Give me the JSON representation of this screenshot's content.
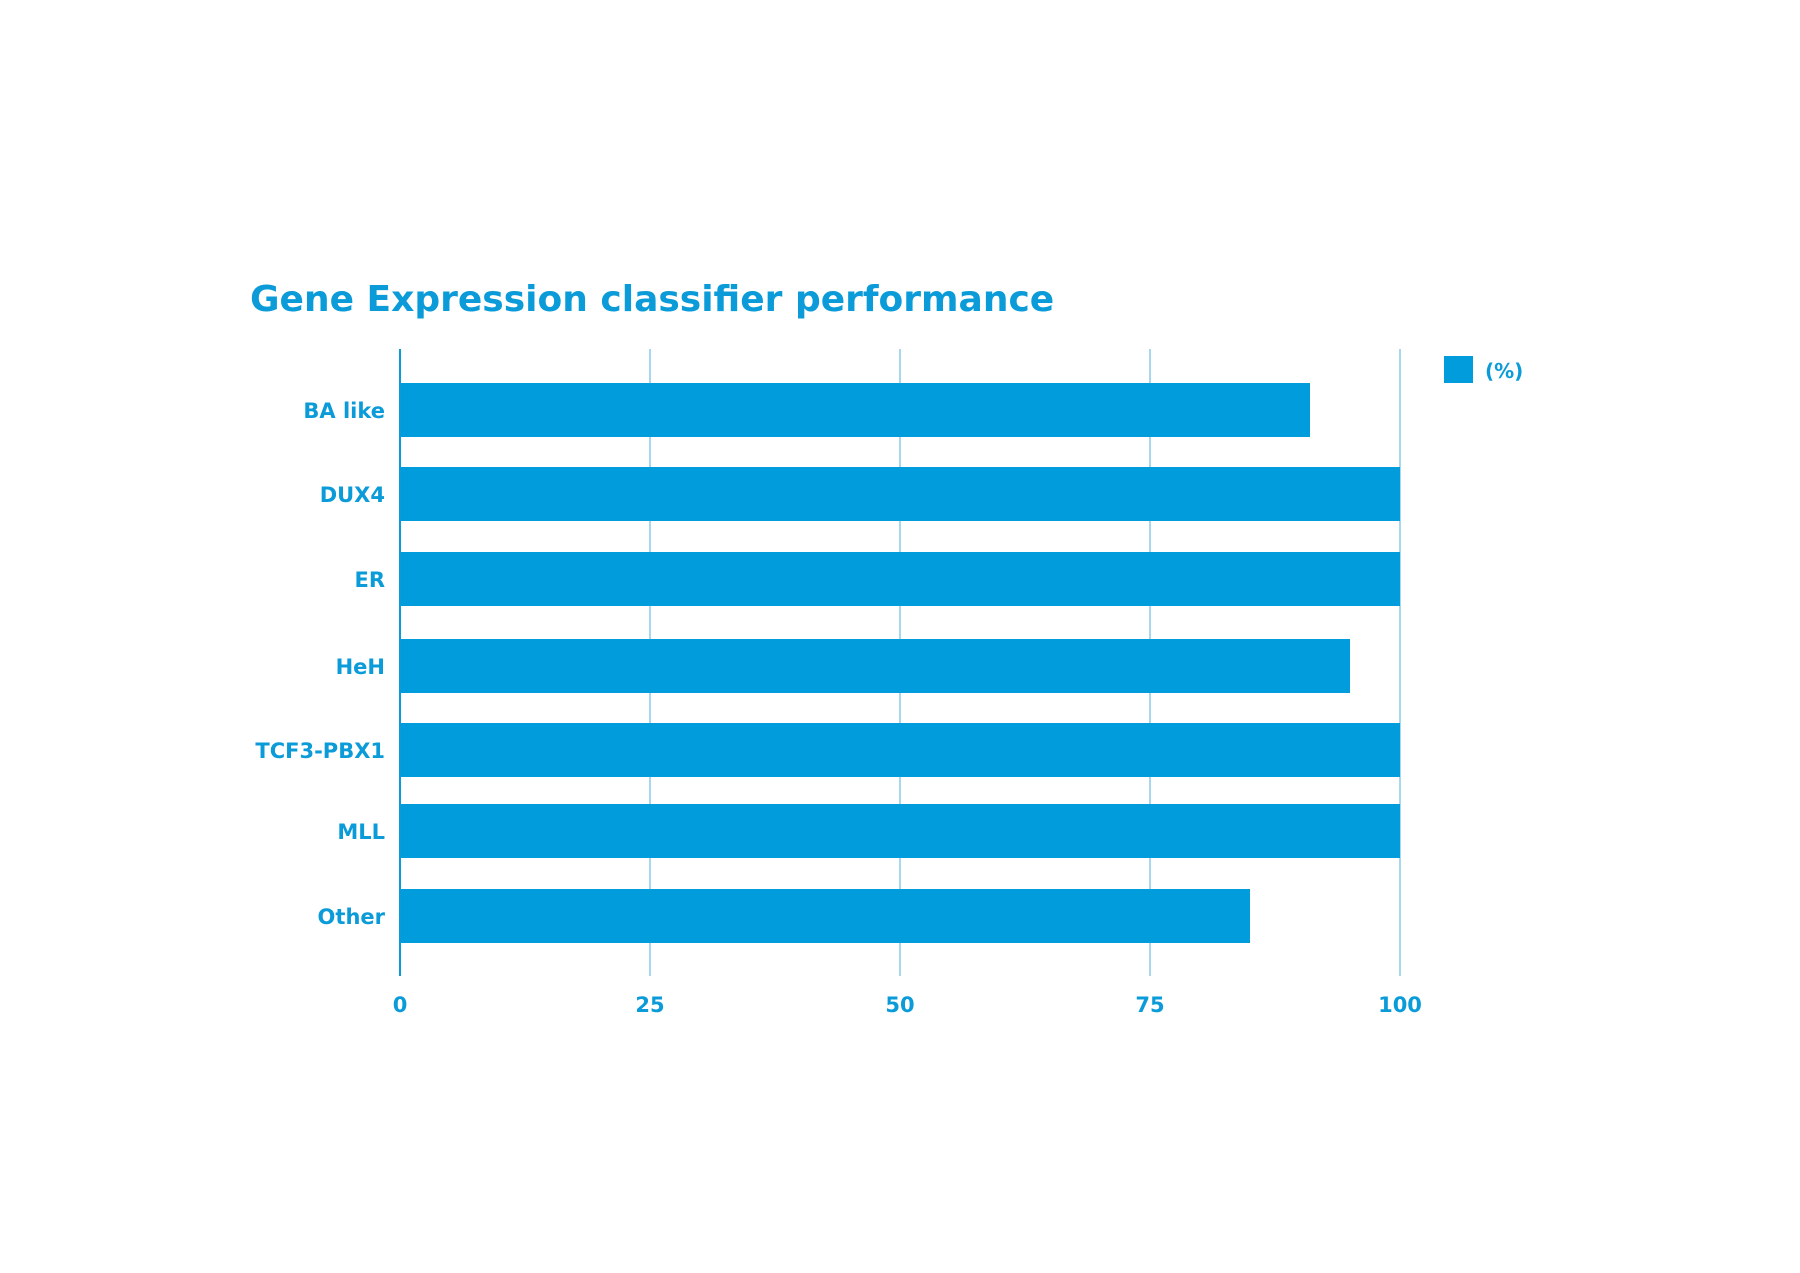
{
  "chart_data": {
    "type": "bar",
    "orientation": "horizontal",
    "title": "Gene Expression classifier performance",
    "categories": [
      "BA like",
      "DUX4",
      "ER",
      "HeH",
      "TCF3-PBX1",
      "MLL",
      "Other"
    ],
    "series": [
      {
        "name": "(%)",
        "values": [
          91,
          100,
          100,
          95,
          100,
          100,
          85
        ]
      }
    ],
    "xlabel": "",
    "ylabel": "",
    "xlim": [
      0,
      100
    ],
    "xticks": [
      0,
      25,
      50,
      75,
      100
    ],
    "grid": true,
    "legend_position": "top-right",
    "colors": {
      "bar": "#009cdb",
      "text": "#0a9bd8",
      "grid": "#8ccbe8",
      "axis": "#0a9bd8"
    }
  }
}
